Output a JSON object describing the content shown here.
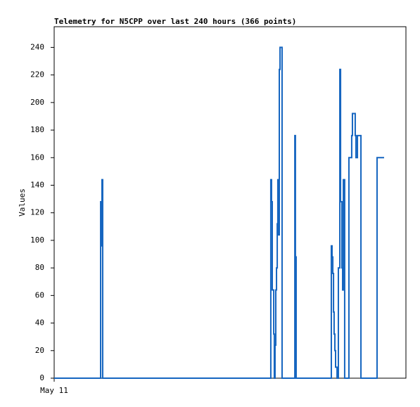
{
  "chart_data": {
    "type": "line",
    "step": true,
    "title": "Telemetry for N5CPP over last 240 hours (366 points)",
    "y_label": "Values",
    "x": [
      0,
      31.7,
      32.2,
      32.6,
      33.1,
      147.8,
      148.3,
      148.8,
      149.8,
      150.2,
      150.7,
      151.2,
      151.7,
      152.2,
      152.6,
      153.1,
      153.6,
      154.1,
      155.5,
      164.2,
      164.6,
      165.1,
      189.1,
      189.6,
      190.1,
      190.6,
      191.0,
      191.5,
      192.0,
      193.0,
      193.9,
      194.9,
      195.4,
      196.3,
      196.8,
      197.3,
      198.2,
      201.1,
      203.0,
      203.5,
      205.4,
      205.9,
      206.9,
      209.3,
      220.3,
      225.1
    ],
    "series": [
      {
        "color": "#1565c0",
        "values": [
          0,
          128,
          96,
          144,
          0,
          144,
          128,
          64,
          32,
          0,
          24,
          64,
          80,
          112,
          144,
          104,
          224,
          240,
          0,
          176,
          88,
          0,
          96,
          88,
          76,
          48,
          32,
          20,
          8,
          0,
          80,
          224,
          128,
          80,
          64,
          144,
          0,
          160,
          176,
          192,
          176,
          160,
          176,
          0,
          160,
          160
        ]
      }
    ],
    "xlim": [
      0,
      240
    ],
    "xticks": [
      {
        "value": 0,
        "label": "May 11"
      }
    ],
    "ylim": [
      0,
      255
    ],
    "yticks": [
      0,
      20,
      40,
      60,
      80,
      100,
      120,
      140,
      160,
      180,
      200,
      220,
      240
    ],
    "grid": false
  }
}
